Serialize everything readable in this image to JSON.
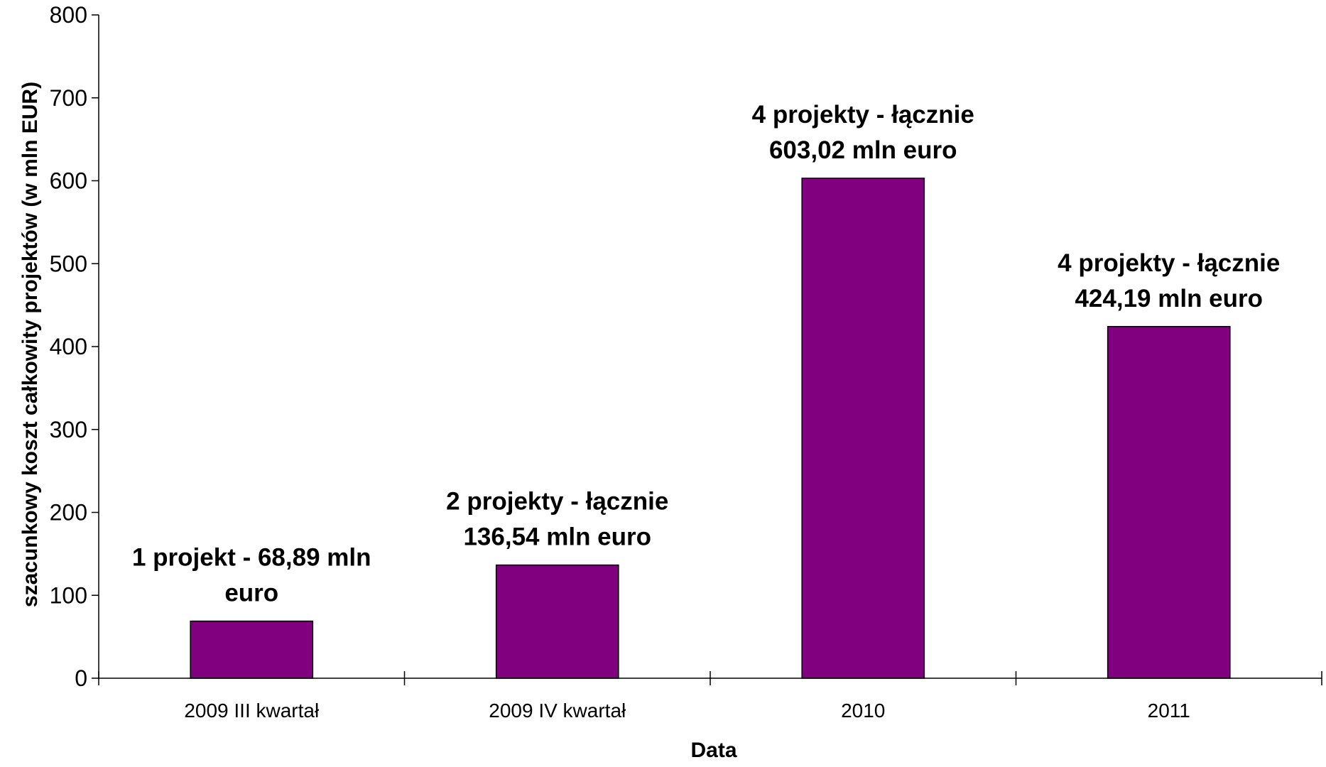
{
  "chart_data": {
    "type": "bar",
    "categories": [
      "2009 III kwartał",
      "2009 IV kwartał",
      "2010",
      "2011"
    ],
    "values": [
      68.89,
      136.54,
      603.02,
      424.19
    ],
    "data_labels": [
      [
        "1 projekt - 68,89 mln",
        "euro"
      ],
      [
        "2 projekty - łącznie",
        "136,54 mln euro"
      ],
      [
        "4 projekty - łącznie",
        "603,02 mln euro"
      ],
      [
        "4 projekty - łącznie",
        "424,19 mln euro"
      ]
    ],
    "title": "",
    "xlabel": "Data",
    "ylabel": "szacunkowy koszt całkowity projektów (w mln EUR)",
    "ylim": [
      0,
      800
    ],
    "yticks": [
      0,
      100,
      200,
      300,
      400,
      500,
      600,
      700,
      800
    ],
    "bar_color": "#800080",
    "grid": false,
    "legend": "none"
  }
}
